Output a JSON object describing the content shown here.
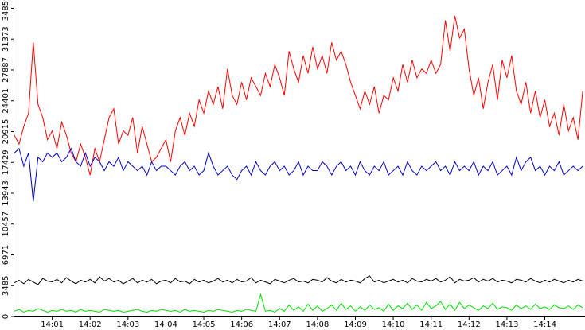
{
  "chart_data": {
    "type": "line",
    "x": [
      0,
      0.125,
      0.25,
      0.375,
      0.5,
      0.625,
      0.75,
      0.875,
      1,
      1.125,
      1.25,
      1.375,
      1.5,
      1.625,
      1.75,
      1.875,
      2,
      2.125,
      2.25,
      2.375,
      2.5,
      2.625,
      2.75,
      2.875,
      3,
      3.125,
      3.25,
      3.375,
      3.5,
      3.625,
      3.75,
      3.875,
      4,
      4.125,
      4.25,
      4.375,
      4.5,
      4.625,
      4.75,
      4.875,
      5,
      5.125,
      5.25,
      5.375,
      5.5,
      5.625,
      5.75,
      5.875,
      6,
      6.125,
      6.25,
      6.375,
      6.5,
      6.625,
      6.75,
      6.875,
      7,
      7.125,
      7.25,
      7.375,
      7.5,
      7.625,
      7.75,
      7.875,
      8,
      8.125,
      8.25,
      8.375,
      8.5,
      8.625,
      8.75,
      8.875,
      9,
      9.125,
      9.25,
      9.375,
      9.5,
      9.625,
      9.75,
      9.875,
      10,
      10.125,
      10.25,
      10.375,
      10.5,
      10.625,
      10.75,
      10.875,
      11,
      11.125,
      11.25,
      11.375,
      11.5,
      11.625,
      11.75,
      11.875,
      12,
      12.125,
      12.25,
      12.375,
      12.5,
      12.625,
      12.75,
      12.875,
      13,
      13.125,
      13.25,
      13.375,
      13.5,
      13.625,
      13.75,
      13.875,
      14,
      14.125,
      14.25,
      14.375,
      14.5,
      14.625,
      14.75,
      14.875,
      15
    ],
    "xlim": [
      0,
      15.06
    ],
    "xticks": [
      {
        "value": 1,
        "label": "14:01"
      },
      {
        "value": 2,
        "label": "14:02"
      },
      {
        "value": 3,
        "label": "14:03"
      },
      {
        "value": 4,
        "label": "14:04"
      },
      {
        "value": 5,
        "label": "14:05"
      },
      {
        "value": 6,
        "label": "14:06"
      },
      {
        "value": 7,
        "label": "14:07"
      },
      {
        "value": 8,
        "label": "14:08"
      },
      {
        "value": 9,
        "label": "14:09"
      },
      {
        "value": 10,
        "label": "14:10"
      },
      {
        "value": 11,
        "label": "14:11"
      },
      {
        "value": 12,
        "label": "14:12"
      },
      {
        "value": 13,
        "label": "14:13"
      },
      {
        "value": 14,
        "label": "14:14"
      }
    ],
    "ylim": [
      0,
      35800
    ],
    "yticks": [
      0,
      3485,
      6971,
      10457,
      13943,
      17429,
      20915,
      24401,
      27887,
      31373,
      34859
    ],
    "series": [
      {
        "color": "#ff0000",
        "values": [
          20500,
          19500,
          21500,
          23000,
          31000,
          24000,
          22500,
          20000,
          21000,
          19000,
          22000,
          20500,
          18500,
          17500,
          19500,
          18000,
          16000,
          19000,
          17500,
          20000,
          22500,
          23500,
          19500,
          21000,
          20500,
          22500,
          18500,
          21500,
          19500,
          17500,
          18000,
          19000,
          20000,
          17500,
          21000,
          22500,
          20500,
          23000,
          21500,
          24500,
          23000,
          25500,
          24000,
          26000,
          23500,
          28000,
          25000,
          24000,
          26500,
          24500,
          27000,
          26000,
          25000,
          27500,
          26000,
          28500,
          27000,
          25000,
          30000,
          28000,
          26500,
          29500,
          27500,
          30500,
          28000,
          29500,
          27500,
          31000,
          29000,
          30000,
          28500,
          26500,
          25000,
          23500,
          25500,
          24000,
          26000,
          23000,
          25000,
          24500,
          27000,
          25500,
          28500,
          26500,
          29000,
          27000,
          28000,
          27500,
          29000,
          27500,
          28500,
          33500,
          30000,
          34000,
          31500,
          32500,
          28000,
          25000,
          27000,
          23500,
          26500,
          28500,
          24500,
          29000,
          27000,
          29500,
          25500,
          24000,
          26500,
          23000,
          25500,
          22500,
          24500,
          21500,
          23000,
          20500,
          24000,
          21000,
          22500,
          20000,
          25500
        ]
      },
      {
        "color": "#0000c0",
        "values": [
          18500,
          19000,
          17000,
          18500,
          13000,
          18000,
          17500,
          18500,
          18000,
          18500,
          17500,
          18000,
          19000,
          17500,
          17000,
          18500,
          17000,
          18000,
          17500,
          16500,
          17500,
          17000,
          18000,
          16500,
          17500,
          17000,
          16500,
          17000,
          16000,
          17500,
          16500,
          17000,
          17000,
          16500,
          16000,
          17000,
          17500,
          16500,
          17000,
          16000,
          16500,
          18500,
          17000,
          16000,
          16500,
          17000,
          16000,
          15500,
          16500,
          17000,
          16000,
          17500,
          16500,
          16000,
          17000,
          17500,
          16500,
          17000,
          16000,
          16500,
          17500,
          16000,
          17000,
          16500,
          16500,
          17500,
          17000,
          16000,
          17000,
          17500,
          16500,
          17000,
          16000,
          17500,
          16500,
          16000,
          17000,
          16500,
          17500,
          16000,
          16500,
          17000,
          16000,
          17500,
          16500,
          16000,
          17000,
          16500,
          17000,
          17500,
          16500,
          17000,
          16000,
          17500,
          16500,
          17000,
          16500,
          17500,
          16000,
          17000,
          16500,
          17500,
          16000,
          16500,
          17000,
          16000,
          18000,
          16500,
          17500,
          18000,
          16500,
          17000,
          16000,
          17000,
          16500,
          17500,
          16000,
          16500,
          17000,
          16500,
          17000
        ]
      },
      {
        "color": "#000000",
        "values": [
          3800,
          4100,
          3700,
          4200,
          3900,
          3600,
          4300,
          4000,
          3900,
          4200,
          3800,
          4400,
          4000,
          3700,
          4100,
          3900,
          4200,
          3800,
          4500,
          4000,
          4300,
          3900,
          4100,
          3700,
          4000,
          4300,
          3800,
          4100,
          3900,
          4200,
          3700,
          4000,
          4100,
          3800,
          4300,
          3900,
          4000,
          3700,
          4200,
          3900,
          4100,
          3800,
          4000,
          4300,
          3900,
          4100,
          3800,
          4200,
          3900,
          4000,
          4400,
          3800,
          4100,
          3900,
          3700,
          4200,
          4000,
          3800,
          4100,
          4300,
          3900,
          4000,
          3800,
          4200,
          4100,
          3900,
          4400,
          4000,
          3800,
          4200,
          3900,
          4100,
          4000,
          3800,
          4300,
          4600,
          3900,
          4100,
          3800,
          4000,
          4200,
          3900,
          4100,
          3800,
          4300,
          4000,
          3900,
          4200,
          4000,
          4300,
          3900,
          4100,
          4500,
          3800,
          4200,
          4000,
          4100,
          4400,
          3900,
          4200,
          4000,
          4300,
          3900,
          4100,
          4000,
          3800,
          4200,
          4100,
          3900,
          4300,
          4000,
          3800,
          4100,
          3900,
          4200,
          4000,
          3800,
          4100,
          3900,
          4200,
          4000
        ]
      },
      {
        "color": "#00e000",
        "values": [
          600,
          800,
          500,
          700,
          600,
          900,
          700,
          500,
          700,
          600,
          800,
          600,
          700,
          500,
          800,
          600,
          700,
          600,
          500,
          800,
          700,
          600,
          700,
          500,
          600,
          700,
          800,
          600,
          500,
          700,
          600,
          800,
          700,
          600,
          700,
          500,
          800,
          600,
          700,
          600,
          500,
          700,
          600,
          800,
          700,
          600,
          500,
          700,
          600,
          800,
          700,
          600,
          2500,
          600,
          700,
          500,
          900,
          600,
          1300,
          700,
          1100,
          600,
          1400,
          700,
          1200,
          600,
          900,
          1300,
          700,
          1500,
          800,
          1200,
          600,
          1100,
          700,
          1300,
          800,
          1000,
          600,
          1400,
          700,
          1200,
          900,
          1500,
          800,
          1300,
          700,
          1600,
          900,
          1200,
          1700,
          800,
          1400,
          700,
          1600,
          900,
          1300,
          1000,
          700,
          1200,
          900,
          1500,
          800,
          1100,
          1000,
          700,
          1300,
          900,
          1200,
          800,
          1400,
          900,
          1100,
          800,
          1300,
          1000,
          900,
          1200,
          800,
          1300,
          1000
        ]
      }
    ]
  }
}
